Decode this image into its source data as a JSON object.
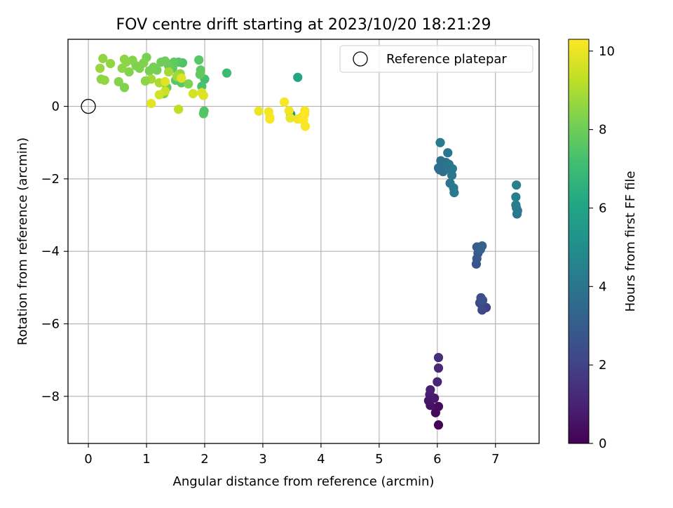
{
  "chart_data": {
    "type": "scatter",
    "title": "FOV centre drift starting at 2023/10/20 18:21:29",
    "xlabel": "Angular distance from reference (arcmin)",
    "ylabel": "Rotation from reference (arcmin)",
    "xlim": [
      -0.35,
      7.75
    ],
    "ylim": [
      -9.3,
      1.85
    ],
    "xticks": [
      0,
      1,
      2,
      3,
      4,
      5,
      6,
      7
    ],
    "yticks": [
      0,
      -2,
      -4,
      -6,
      -8
    ],
    "grid": true,
    "legend": {
      "position": "top-right",
      "entries": [
        "Reference platepar"
      ]
    },
    "reference_point": {
      "x": 0,
      "y": 0
    },
    "colorbar": {
      "label": "Hours from first FF file",
      "min": 0,
      "max": 10.3,
      "ticks": [
        0,
        2,
        4,
        6,
        8,
        10
      ],
      "colormap": "viridis"
    },
    "points": [
      [
        6.02,
        -8.79,
        0.1
      ],
      [
        5.97,
        -8.45,
        0.2
      ],
      [
        6.02,
        -8.28,
        0.3
      ],
      [
        5.88,
        -8.25,
        0.5
      ],
      [
        5.85,
        -8.12,
        0.6
      ],
      [
        5.95,
        -8.05,
        0.7
      ],
      [
        5.87,
        -7.95,
        0.8
      ],
      [
        5.88,
        -7.82,
        0.9
      ],
      [
        6.0,
        -7.6,
        1.1
      ],
      [
        6.02,
        -7.22,
        1.2
      ],
      [
        6.02,
        -6.93,
        1.4
      ],
      [
        6.84,
        -5.55,
        2.0
      ],
      [
        6.77,
        -5.5,
        2.1
      ],
      [
        6.77,
        -5.62,
        2.2
      ],
      [
        6.73,
        -5.42,
        2.3
      ],
      [
        6.75,
        -5.28,
        2.4
      ],
      [
        6.78,
        -5.35,
        2.5
      ],
      [
        6.67,
        -4.35,
        2.7
      ],
      [
        6.68,
        -4.2,
        2.8
      ],
      [
        6.7,
        -4.05,
        2.9
      ],
      [
        6.68,
        -3.88,
        3.0
      ],
      [
        6.74,
        -3.95,
        3.1
      ],
      [
        6.77,
        -3.85,
        3.2
      ],
      [
        6.04,
        -1.75,
        3.6
      ],
      [
        6.1,
        -1.8,
        3.7
      ],
      [
        6.07,
        -1.62,
        3.8
      ],
      [
        6.15,
        -1.55,
        3.8
      ],
      [
        6.12,
        -1.7,
        3.9
      ],
      [
        6.2,
        -1.72,
        4.0
      ],
      [
        6.22,
        -2.12,
        4.0
      ],
      [
        6.28,
        -2.25,
        4.1
      ],
      [
        6.29,
        -2.38,
        4.2
      ],
      [
        6.26,
        -1.72,
        4.1
      ],
      [
        6.2,
        -1.6,
        3.9
      ],
      [
        6.06,
        -1.5,
        3.8
      ],
      [
        6.18,
        -1.28,
        4.0
      ],
      [
        6.05,
        -1.0,
        4.3
      ],
      [
        6.25,
        -1.9,
        4.0
      ],
      [
        6.02,
        -1.7,
        3.7
      ],
      [
        7.37,
        -2.97,
        4.0
      ],
      [
        7.38,
        -2.88,
        4.1
      ],
      [
        7.36,
        -2.8,
        4.2
      ],
      [
        7.35,
        -2.72,
        4.3
      ],
      [
        7.35,
        -2.5,
        4.4
      ],
      [
        7.36,
        -2.17,
        4.5
      ],
      [
        3.48,
        -0.22,
        5.4
      ],
      [
        3.6,
        0.8,
        6.0
      ],
      [
        2.38,
        0.92,
        7.0
      ],
      [
        2.0,
        0.75,
        7.2
      ],
      [
        1.95,
        0.55,
        7.3
      ],
      [
        1.98,
        -0.2,
        7.6
      ],
      [
        1.99,
        -0.13,
        7.5
      ],
      [
        1.9,
        1.28,
        7.6
      ],
      [
        1.93,
        1.0,
        7.7
      ],
      [
        1.92,
        0.88,
        7.8
      ],
      [
        1.62,
        1.2,
        7.4
      ],
      [
        1.55,
        1.22,
        7.5
      ],
      [
        1.47,
        1.22,
        7.7
      ],
      [
        1.45,
        1.05,
        7.8
      ],
      [
        1.38,
        1.12,
        7.9
      ],
      [
        1.32,
        1.25,
        8.0
      ],
      [
        1.25,
        1.22,
        8.0
      ],
      [
        1.18,
        1.0,
        8.1
      ],
      [
        1.12,
        1.08,
        8.1
      ],
      [
        1.05,
        0.98,
        8.2
      ],
      [
        1.0,
        1.35,
        8.2
      ],
      [
        0.95,
        1.2,
        8.3
      ],
      [
        0.88,
        1.05,
        8.3
      ],
      [
        0.82,
        1.12,
        8.3
      ],
      [
        0.76,
        1.27,
        8.4
      ],
      [
        0.7,
        0.95,
        8.4
      ],
      [
        0.65,
        1.22,
        8.5
      ],
      [
        0.62,
        1.3,
        8.5
      ],
      [
        0.58,
        1.05,
        8.5
      ],
      [
        0.52,
        0.68,
        8.4
      ],
      [
        0.62,
        0.52,
        8.3
      ],
      [
        0.38,
        1.18,
        8.6
      ],
      [
        0.25,
        1.32,
        8.6
      ],
      [
        0.22,
        0.75,
        8.5
      ],
      [
        0.2,
        1.05,
        8.7
      ],
      [
        0.28,
        0.72,
        8.6
      ],
      [
        1.5,
        0.72,
        7.6
      ],
      [
        1.6,
        0.65,
        7.6
      ],
      [
        1.35,
        0.52,
        7.9
      ],
      [
        1.3,
        0.35,
        8.2
      ],
      [
        1.72,
        0.62,
        8.3
      ],
      [
        1.58,
        0.9,
        8.6
      ],
      [
        1.52,
        0.82,
        8.8
      ],
      [
        1.38,
        0.95,
        8.9
      ],
      [
        1.22,
        0.65,
        9.0
      ],
      [
        1.08,
        0.75,
        8.9
      ],
      [
        0.98,
        0.7,
        8.5
      ],
      [
        1.32,
        0.42,
        9.5
      ],
      [
        1.22,
        0.32,
        9.6
      ],
      [
        1.55,
        -0.08,
        9.3
      ],
      [
        1.95,
        0.38,
        9.7
      ],
      [
        1.98,
        0.3,
        9.8
      ],
      [
        1.8,
        0.35,
        9.6
      ],
      [
        1.08,
        0.08,
        9.9
      ],
      [
        1.6,
        0.78,
        9.8
      ],
      [
        1.32,
        0.68,
        9.8
      ],
      [
        2.93,
        -0.13,
        10.0
      ],
      [
        3.1,
        -0.15,
        10.1
      ],
      [
        3.12,
        -0.3,
        10.2
      ],
      [
        3.12,
        -0.35,
        10.2
      ],
      [
        3.37,
        0.12,
        10.2
      ],
      [
        3.45,
        -0.12,
        10.1
      ],
      [
        3.47,
        -0.32,
        10.0
      ],
      [
        3.6,
        -0.35,
        10.1
      ],
      [
        3.68,
        -0.28,
        10.1
      ],
      [
        3.72,
        -0.12,
        10.2
      ],
      [
        3.73,
        -0.55,
        10.2
      ],
      [
        3.72,
        -0.22,
        10.3
      ],
      [
        3.7,
        -0.38,
        10.3
      ]
    ]
  }
}
